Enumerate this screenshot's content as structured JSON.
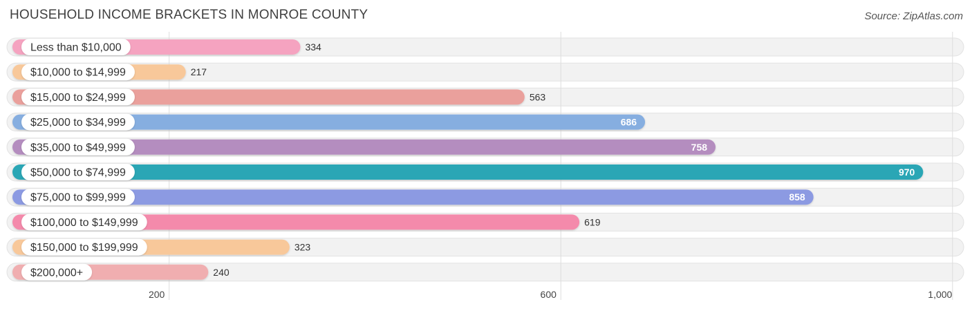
{
  "header": {
    "title": "HOUSEHOLD INCOME BRACKETS IN MONROE COUNTY",
    "source": "Source: ZipAtlas.com"
  },
  "chart_data": {
    "type": "bar",
    "orientation": "horizontal",
    "title": "HOUSEHOLD INCOME BRACKETS IN MONROE COUNTY",
    "xlabel": "",
    "ylabel": "",
    "xlim": [
      40,
      1010
    ],
    "grid": true,
    "legend": "none",
    "ticks": [
      200,
      600,
      1000
    ],
    "tick_labels": [
      "200",
      "600",
      "1,000"
    ],
    "categories": [
      "Less than $10,000",
      "$10,000 to $14,999",
      "$15,000 to $24,999",
      "$25,000 to $34,999",
      "$35,000 to $49,999",
      "$50,000 to $74,999",
      "$75,000 to $99,999",
      "$100,000 to $149,999",
      "$150,000 to $199,999",
      "$200,000+"
    ],
    "values": [
      334,
      217,
      563,
      686,
      758,
      970,
      858,
      619,
      323,
      240
    ],
    "value_labels": [
      "334",
      "217",
      "563",
      "686",
      "758",
      "970",
      "858",
      "619",
      "323",
      "240"
    ],
    "colors": [
      "#f5a3c0",
      "#f8c89a",
      "#eaa09c",
      "#86aee0",
      "#b48dbf",
      "#2ba6b5",
      "#8c9ae2",
      "#f48aab",
      "#f8c89a",
      "#f0aeb0"
    ],
    "value_label_inside": [
      false,
      false,
      false,
      true,
      true,
      true,
      true,
      false,
      false,
      false
    ]
  }
}
